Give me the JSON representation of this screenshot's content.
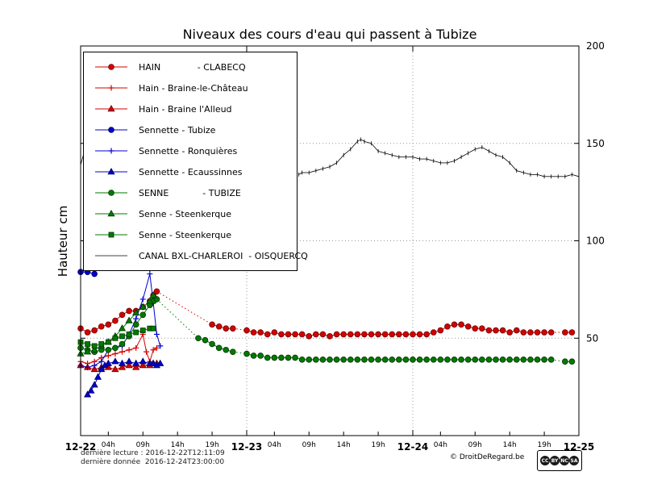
{
  "footer": {
    "reading": "dernière lecture : 2016-12-22T12:11:09",
    "data": "dernière donnée  2016-12-24T23:00:00",
    "credit": "© DroitDeRegard.be",
    "license_badges": [
      "CC",
      "BY",
      "NC",
      "SA"
    ]
  },
  "chart_data": {
    "type": "line",
    "title": "Niveaux des cours d'eau qui passent à Tubize",
    "xlabel": "",
    "ylabel": "Hauteur cm",
    "ylim": [
      0,
      200
    ],
    "xlim_hours": [
      0,
      72
    ],
    "x_origin": "2016-12-22T00:00",
    "yticks": [
      50,
      100,
      150,
      200
    ],
    "xticks_major": [
      {
        "t": 0,
        "label": "12-22"
      },
      {
        "t": 24,
        "label": "12-23"
      },
      {
        "t": 48,
        "label": "12-24"
      },
      {
        "t": 72,
        "label": "12-25"
      }
    ],
    "xticks_minor": [
      {
        "t": 4,
        "label": "04h"
      },
      {
        "t": 9,
        "label": "09h"
      },
      {
        "t": 14,
        "label": "14h"
      },
      {
        "t": 19,
        "label": "19h"
      },
      {
        "t": 28,
        "label": "04h"
      },
      {
        "t": 33,
        "label": "09h"
      },
      {
        "t": 38,
        "label": "14h"
      },
      {
        "t": 43,
        "label": "19h"
      },
      {
        "t": 52,
        "label": "04h"
      },
      {
        "t": 57,
        "label": "09h"
      },
      {
        "t": 62,
        "label": "14h"
      },
      {
        "t": 67,
        "label": "19h"
      }
    ],
    "grid": {
      "h": [
        50,
        100,
        150
      ],
      "v": [
        24,
        48
      ]
    },
    "legend_position": "upper-left",
    "series": [
      {
        "id": "hain-clabecq",
        "label": "HAIN             - CLABECQ",
        "color": "#d40000",
        "edge": "#6b0000",
        "marker": "circle",
        "lw": 1,
        "gap": "dotted",
        "points": [
          [
            0,
            55
          ],
          [
            1,
            53
          ],
          [
            2,
            54
          ],
          [
            3,
            56
          ],
          [
            4,
            57
          ],
          [
            5,
            59
          ],
          [
            6,
            62
          ],
          [
            7,
            64
          ],
          [
            8,
            64
          ],
          [
            9,
            66
          ],
          [
            10,
            69
          ],
          [
            10.5,
            72
          ],
          [
            11,
            74
          ],
          [
            19,
            57
          ],
          [
            20,
            56
          ],
          [
            21,
            55
          ],
          [
            22,
            55
          ],
          [
            24,
            54
          ],
          [
            25,
            53
          ],
          [
            26,
            53
          ],
          [
            27,
            52
          ],
          [
            28,
            53
          ],
          [
            29,
            52
          ],
          [
            30,
            52
          ],
          [
            31,
            52
          ],
          [
            32,
            52
          ],
          [
            33,
            51
          ],
          [
            34,
            52
          ],
          [
            35,
            52
          ],
          [
            36,
            51
          ],
          [
            37,
            52
          ],
          [
            38,
            52
          ],
          [
            39,
            52
          ],
          [
            40,
            52
          ],
          [
            41,
            52
          ],
          [
            42,
            52
          ],
          [
            43,
            52
          ],
          [
            44,
            52
          ],
          [
            45,
            52
          ],
          [
            46,
            52
          ],
          [
            47,
            52
          ],
          [
            48,
            52
          ],
          [
            49,
            52
          ],
          [
            50,
            52
          ],
          [
            51,
            53
          ],
          [
            52,
            54
          ],
          [
            53,
            56
          ],
          [
            54,
            57
          ],
          [
            55,
            57
          ],
          [
            56,
            56
          ],
          [
            57,
            55
          ],
          [
            58,
            55
          ],
          [
            59,
            54
          ],
          [
            60,
            54
          ],
          [
            61,
            54
          ],
          [
            62,
            53
          ],
          [
            63,
            54
          ],
          [
            64,
            53
          ],
          [
            65,
            53
          ],
          [
            66,
            53
          ],
          [
            67,
            53
          ],
          [
            68,
            53
          ],
          [
            70,
            53
          ],
          [
            71,
            53
          ]
        ]
      },
      {
        "id": "hain-braine-le-chateau",
        "label": "Hain - Braine-le-Château",
        "color": "#d40000",
        "edge": "#6b0000",
        "marker": "plus",
        "lw": 1,
        "gap": "dotted",
        "points": [
          [
            0,
            38
          ],
          [
            1,
            37
          ],
          [
            2,
            38
          ],
          [
            3,
            40
          ],
          [
            4,
            41
          ],
          [
            5,
            42
          ],
          [
            6,
            43
          ],
          [
            7,
            44
          ],
          [
            8,
            45
          ],
          [
            9,
            52
          ],
          [
            9.5,
            43
          ],
          [
            10,
            38
          ],
          [
            10.5,
            44
          ],
          [
            11,
            45
          ]
        ]
      },
      {
        "id": "hain-braine-l-alleud",
        "label": "Hain - Braine l'Alleud",
        "color": "#d40000",
        "edge": "#6b0000",
        "marker": "triangle",
        "lw": 1,
        "gap": "dotted",
        "points": [
          [
            0,
            36
          ],
          [
            1,
            35
          ],
          [
            2,
            34
          ],
          [
            3,
            35
          ],
          [
            4,
            35
          ],
          [
            5,
            34
          ],
          [
            6,
            35
          ],
          [
            7,
            36
          ],
          [
            8,
            35
          ],
          [
            9,
            36
          ],
          [
            10,
            36
          ],
          [
            10.5,
            37
          ],
          [
            11,
            37
          ]
        ]
      },
      {
        "id": "sennette-tubize",
        "label": "Sennette - Tubize",
        "color": "#0000cc",
        "edge": "#000066",
        "marker": "circle",
        "lw": 1,
        "gap": "dotted",
        "points": [
          [
            0,
            84
          ],
          [
            1,
            84
          ],
          [
            2,
            83
          ]
        ]
      },
      {
        "id": "sennette-ronquieres",
        "label": "Sennette - Ronquières",
        "color": "#0000cc",
        "edge": "#000066",
        "marker": "plus",
        "lw": 1,
        "gap": "dotted",
        "points": [
          [
            0,
            36
          ],
          [
            1,
            35
          ],
          [
            2,
            36
          ],
          [
            3,
            38
          ],
          [
            4,
            44
          ],
          [
            5,
            45
          ],
          [
            6,
            46
          ],
          [
            7,
            52
          ],
          [
            8,
            60
          ],
          [
            9,
            70
          ],
          [
            10,
            83
          ],
          [
            10.5,
            68
          ],
          [
            11,
            52
          ],
          [
            11.5,
            46
          ]
        ]
      },
      {
        "id": "sennette-ecaussinnes",
        "label": "Sennette - Ecaussinnes",
        "color": "#0000cc",
        "edge": "#000066",
        "marker": "triangle",
        "lw": 1,
        "gap": "dotted",
        "points": [
          [
            1,
            21
          ],
          [
            1.5,
            23
          ],
          [
            2,
            26
          ],
          [
            2.5,
            30
          ],
          [
            3,
            34
          ],
          [
            3.5,
            36
          ],
          [
            4,
            37
          ],
          [
            5,
            38
          ],
          [
            6,
            37
          ],
          [
            7,
            38
          ],
          [
            8,
            37
          ],
          [
            9,
            38
          ],
          [
            10,
            37
          ],
          [
            10.5,
            37
          ],
          [
            11,
            36
          ],
          [
            11.5,
            37
          ]
        ]
      },
      {
        "id": "senne-tubize",
        "label": "SENNE            - TUBIZE",
        "color": "#007a00",
        "edge": "#003300",
        "marker": "circle",
        "lw": 1,
        "gap": "dotted",
        "points": [
          [
            0,
            45
          ],
          [
            1,
            44
          ],
          [
            2,
            43
          ],
          [
            3,
            44
          ],
          [
            4,
            44
          ],
          [
            5,
            45
          ],
          [
            6,
            47
          ],
          [
            7,
            51
          ],
          [
            8,
            57
          ],
          [
            9,
            62
          ],
          [
            10,
            67
          ],
          [
            10.5,
            69
          ],
          [
            11,
            70
          ],
          [
            17,
            50
          ],
          [
            18,
            49
          ],
          [
            19,
            47
          ],
          [
            20,
            45
          ],
          [
            21,
            44
          ],
          [
            22,
            43
          ],
          [
            24,
            42
          ],
          [
            25,
            41
          ],
          [
            26,
            41
          ],
          [
            27,
            40
          ],
          [
            28,
            40
          ],
          [
            29,
            40
          ],
          [
            30,
            40
          ],
          [
            31,
            40
          ],
          [
            32,
            39
          ],
          [
            33,
            39
          ],
          [
            34,
            39
          ],
          [
            35,
            39
          ],
          [
            36,
            39
          ],
          [
            37,
            39
          ],
          [
            38,
            39
          ],
          [
            39,
            39
          ],
          [
            40,
            39
          ],
          [
            41,
            39
          ],
          [
            42,
            39
          ],
          [
            43,
            39
          ],
          [
            44,
            39
          ],
          [
            45,
            39
          ],
          [
            46,
            39
          ],
          [
            47,
            39
          ],
          [
            48,
            39
          ],
          [
            49,
            39
          ],
          [
            50,
            39
          ],
          [
            51,
            39
          ],
          [
            52,
            39
          ],
          [
            53,
            39
          ],
          [
            54,
            39
          ],
          [
            55,
            39
          ],
          [
            56,
            39
          ],
          [
            57,
            39
          ],
          [
            58,
            39
          ],
          [
            59,
            39
          ],
          [
            60,
            39
          ],
          [
            61,
            39
          ],
          [
            62,
            39
          ],
          [
            63,
            39
          ],
          [
            64,
            39
          ],
          [
            65,
            39
          ],
          [
            66,
            39
          ],
          [
            67,
            39
          ],
          [
            68,
            39
          ],
          [
            70,
            38
          ],
          [
            71,
            38
          ]
        ]
      },
      {
        "id": "senne-steenkerque-triangle",
        "label": "Senne - Steenkerque",
        "color": "#007a00",
        "edge": "#003300",
        "marker": "triangle",
        "lw": 1,
        "gap": "dotted",
        "points": [
          [
            0,
            42
          ],
          [
            1,
            43
          ],
          [
            2,
            44
          ],
          [
            3,
            46
          ],
          [
            4,
            48
          ],
          [
            5,
            51
          ],
          [
            6,
            55
          ],
          [
            7,
            59
          ],
          [
            8,
            63
          ],
          [
            9,
            66
          ],
          [
            10,
            69
          ],
          [
            10.5,
            72
          ]
        ]
      },
      {
        "id": "senne-steenkerque-square",
        "label": "Senne - Steenkerque",
        "color": "#007a00",
        "edge": "#003300",
        "marker": "square",
        "lw": 1,
        "gap": "dotted",
        "points": [
          [
            0,
            48
          ],
          [
            1,
            47
          ],
          [
            2,
            46
          ],
          [
            3,
            47
          ],
          [
            4,
            48
          ],
          [
            5,
            50
          ],
          [
            6,
            51
          ],
          [
            7,
            52
          ],
          [
            8,
            53
          ],
          [
            9,
            54
          ],
          [
            10,
            55
          ],
          [
            10.5,
            55
          ]
        ]
      },
      {
        "id": "canal-bxl-charleroi-oisquercq",
        "label": "CANAL BXL-CHARLEROI  - OISQUERCQ",
        "color": "#000000",
        "edge": "#000000",
        "marker": "vline",
        "lw": 0.8,
        "gap": "break",
        "points": [
          [
            0,
            139
          ],
          [
            0.4,
            144
          ],
          [
            0.8,
            141
          ],
          [
            1.2,
            143
          ],
          [
            31.5,
            134
          ],
          [
            32,
            135
          ],
          [
            33,
            135
          ],
          [
            34,
            136
          ],
          [
            35,
            137
          ],
          [
            36,
            138
          ],
          [
            37,
            140
          ],
          [
            38,
            144
          ],
          [
            39,
            147
          ],
          [
            40,
            151
          ],
          [
            40.5,
            152
          ],
          [
            41,
            151
          ],
          [
            42,
            150
          ],
          [
            43,
            146
          ],
          [
            44,
            145
          ],
          [
            45,
            144
          ],
          [
            46,
            143
          ],
          [
            47,
            143
          ],
          [
            48,
            143
          ],
          [
            49,
            142
          ],
          [
            50,
            142
          ],
          [
            51,
            141
          ],
          [
            52,
            140
          ],
          [
            53,
            140
          ],
          [
            54,
            141
          ],
          [
            55,
            143
          ],
          [
            56,
            145
          ],
          [
            57,
            147
          ],
          [
            58,
            148
          ],
          [
            59,
            146
          ],
          [
            60,
            144
          ],
          [
            61,
            143
          ],
          [
            62,
            140
          ],
          [
            63,
            136
          ],
          [
            64,
            135
          ],
          [
            65,
            134
          ],
          [
            66,
            134
          ],
          [
            67,
            133
          ],
          [
            68,
            133
          ],
          [
            69,
            133
          ],
          [
            70,
            133
          ],
          [
            71,
            134
          ],
          [
            72,
            133
          ]
        ]
      }
    ]
  }
}
